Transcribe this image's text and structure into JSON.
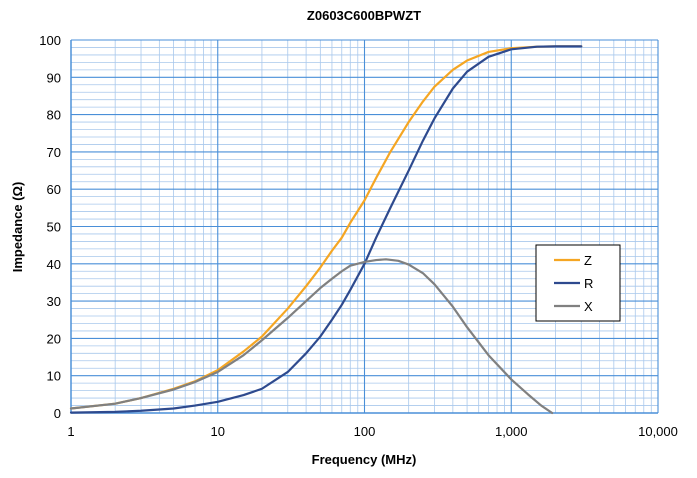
{
  "chart_data": {
    "type": "line",
    "title": "Z0603C600BPWZT",
    "xlabel": "Frequency (MHz)",
    "ylabel": "Impedance (Ω)",
    "x_scale": "log",
    "xlim": [
      1,
      10000
    ],
    "ylim": [
      0,
      100
    ],
    "x_ticks": [
      1,
      10,
      100,
      1000,
      10000
    ],
    "x_tick_labels": [
      "1",
      "10",
      "100",
      "1,000",
      "10,000"
    ],
    "y_ticks": [
      0,
      10,
      20,
      30,
      40,
      50,
      60,
      70,
      80,
      90,
      100
    ],
    "y_tick_labels": [
      "0",
      "10",
      "20",
      "30",
      "40",
      "50",
      "60",
      "70",
      "80",
      "90",
      "100"
    ],
    "grid": true,
    "legend_position": "right",
    "series": [
      {
        "name": "Z",
        "color": "#f5a623",
        "x": [
          1,
          2,
          3,
          5,
          7,
          10,
          15,
          20,
          30,
          40,
          50,
          60,
          70,
          80,
          100,
          120,
          150,
          200,
          250,
          300,
          400,
          500,
          700,
          1000,
          1500,
          2000,
          3000
        ],
        "y": [
          1.2,
          2.5,
          4.0,
          6.5,
          8.5,
          11.5,
          16.5,
          20.5,
          28,
          34,
          39,
          43.5,
          47,
          51,
          57,
          63,
          70,
          78,
          83.5,
          87.5,
          92,
          94.5,
          96.8,
          97.8,
          98.2,
          98.3,
          98.3
        ]
      },
      {
        "name": "R",
        "color": "#2e4a8e",
        "x": [
          1,
          2,
          3,
          5,
          7,
          10,
          15,
          20,
          30,
          40,
          50,
          60,
          70,
          80,
          100,
          120,
          150,
          200,
          250,
          300,
          400,
          500,
          700,
          1000,
          1500,
          2000,
          3000
        ],
        "y": [
          0.1,
          0.3,
          0.6,
          1.2,
          2.0,
          3.0,
          4.8,
          6.5,
          11,
          16,
          20.5,
          25,
          29,
          33,
          40,
          47,
          55,
          65,
          73,
          79,
          87,
          91.5,
          95.5,
          97.5,
          98.2,
          98.3,
          98.3
        ]
      },
      {
        "name": "X",
        "color": "#808080",
        "x": [
          1,
          2,
          3,
          5,
          7,
          10,
          15,
          20,
          30,
          40,
          50,
          60,
          70,
          80,
          100,
          120,
          140,
          170,
          200,
          250,
          300,
          400,
          500,
          700,
          1000,
          1300,
          1600,
          1900
        ],
        "y": [
          1.2,
          2.5,
          4.0,
          6.3,
          8.3,
          11.0,
          15.5,
          19.5,
          25.5,
          30,
          33.5,
          36,
          38,
          39.5,
          40.5,
          41,
          41.2,
          40.8,
          39.8,
          37.5,
          34.5,
          28.5,
          23,
          15.5,
          9,
          5,
          2,
          0
        ]
      }
    ]
  }
}
